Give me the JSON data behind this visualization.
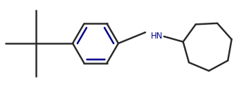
{
  "line_color": "#2a2a2a",
  "line_width": 1.8,
  "bg_color": "#ffffff",
  "hn_color": "#00008b",
  "benzene_color": "#00008b",
  "figsize": [
    3.54,
    1.25
  ],
  "dpi": 100
}
